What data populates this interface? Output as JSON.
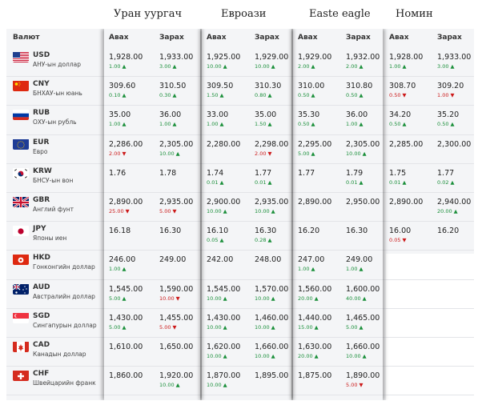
{
  "banks": [
    {
      "name": "Уран уургач"
    },
    {
      "name": "Евроази"
    },
    {
      "name": "Easte eagle"
    },
    {
      "name": "Номин"
    }
  ],
  "header": {
    "currency": "Валют",
    "buy": "Авах",
    "sell": "Зарах"
  },
  "rows": [
    {
      "code": "USD",
      "name": "АНУ-ын доллар",
      "flag": "us",
      "rates": [
        {
          "buy": "1,928.00",
          "buy_chg": "1.00",
          "buy_dir": "up",
          "sell": "1,933.00",
          "sell_chg": "3.00",
          "sell_dir": "up"
        },
        {
          "buy": "1,925.00",
          "buy_chg": "10.00",
          "buy_dir": "up",
          "sell": "1,929.00",
          "sell_chg": "10.00",
          "sell_dir": "up"
        },
        {
          "buy": "1,929.00",
          "buy_chg": "2.00",
          "buy_dir": "up",
          "sell": "1,932.00",
          "sell_chg": "2.00",
          "sell_dir": "up"
        },
        {
          "buy": "1,928.00",
          "buy_chg": "1.00",
          "buy_dir": "up",
          "sell": "1,933.00",
          "sell_chg": "3.00",
          "sell_dir": "up"
        }
      ]
    },
    {
      "code": "CNY",
      "name": "БНХАУ-ын юань",
      "flag": "cn",
      "rates": [
        {
          "buy": "309.60",
          "buy_chg": "0.10",
          "buy_dir": "up",
          "sell": "310.50",
          "sell_chg": "0.30",
          "sell_dir": "up"
        },
        {
          "buy": "309.50",
          "buy_chg": "1.50",
          "buy_dir": "up",
          "sell": "310.30",
          "sell_chg": "0.80",
          "sell_dir": "up"
        },
        {
          "buy": "310.00",
          "buy_chg": "0.50",
          "buy_dir": "up",
          "sell": "310.80",
          "sell_chg": "0.50",
          "sell_dir": "up"
        },
        {
          "buy": "308.70",
          "buy_chg": "0.50",
          "buy_dir": "down",
          "sell": "309.20",
          "sell_chg": "1.00",
          "sell_dir": "down"
        }
      ]
    },
    {
      "code": "RUB",
      "name": "ОХУ-ын рубль",
      "flag": "ru",
      "rates": [
        {
          "buy": "35.00",
          "buy_chg": "1.00",
          "buy_dir": "up",
          "sell": "36.00",
          "sell_chg": "1.00",
          "sell_dir": "up"
        },
        {
          "buy": "33.00",
          "buy_chg": "1.00",
          "buy_dir": "up",
          "sell": "35.00",
          "sell_chg": "1.50",
          "sell_dir": "up"
        },
        {
          "buy": "35.30",
          "buy_chg": "0.50",
          "buy_dir": "up",
          "sell": "36.00",
          "sell_chg": "1.00",
          "sell_dir": "up"
        },
        {
          "buy": "34.20",
          "buy_chg": "0.50",
          "buy_dir": "up",
          "sell": "35.20",
          "sell_chg": "0.50",
          "sell_dir": "up"
        }
      ]
    },
    {
      "code": "EUR",
      "name": "Евро",
      "flag": "eu",
      "rates": [
        {
          "buy": "2,286.00",
          "buy_chg": "2.00",
          "buy_dir": "down",
          "sell": "2,305.00",
          "sell_chg": "10.00",
          "sell_dir": "up"
        },
        {
          "buy": "2,280.00",
          "buy_chg": "",
          "buy_dir": "",
          "sell": "2,298.00",
          "sell_chg": "2.00",
          "sell_dir": "down"
        },
        {
          "buy": "2,295.00",
          "buy_chg": "5.00",
          "buy_dir": "up",
          "sell": "2,305.00",
          "sell_chg": "10.00",
          "sell_dir": "up"
        },
        {
          "buy": "2,285.00",
          "buy_chg": "",
          "buy_dir": "",
          "sell": "2,300.00",
          "sell_chg": "",
          "sell_dir": ""
        }
      ]
    },
    {
      "code": "KRW",
      "name": "БНСУ-ын вон",
      "flag": "kr",
      "rates": [
        {
          "buy": "1.76",
          "buy_chg": "",
          "buy_dir": "",
          "sell": "1.78",
          "sell_chg": "",
          "sell_dir": ""
        },
        {
          "buy": "1.74",
          "buy_chg": "0.01",
          "buy_dir": "up",
          "sell": "1.77",
          "sell_chg": "0.01",
          "sell_dir": "up"
        },
        {
          "buy": "1.77",
          "buy_chg": "",
          "buy_dir": "",
          "sell": "1.79",
          "sell_chg": "0.01",
          "sell_dir": "up"
        },
        {
          "buy": "1.75",
          "buy_chg": "0.01",
          "buy_dir": "up",
          "sell": "1.77",
          "sell_chg": "0.02",
          "sell_dir": "up"
        }
      ]
    },
    {
      "code": "GBR",
      "name": "Англий фунт",
      "flag": "gb",
      "rates": [
        {
          "buy": "2,890.00",
          "buy_chg": "25.00",
          "buy_dir": "down",
          "sell": "2,935.00",
          "sell_chg": "5.00",
          "sell_dir": "down"
        },
        {
          "buy": "2,900.00",
          "buy_chg": "10.00",
          "buy_dir": "up",
          "sell": "2,935.00",
          "sell_chg": "10.00",
          "sell_dir": "up"
        },
        {
          "buy": "2,890.00",
          "buy_chg": "",
          "buy_dir": "",
          "sell": "2,950.00",
          "sell_chg": "",
          "sell_dir": ""
        },
        {
          "buy": "2,890.00",
          "buy_chg": "",
          "buy_dir": "",
          "sell": "2,940.00",
          "sell_chg": "20.00",
          "sell_dir": "up"
        }
      ]
    },
    {
      "code": "JPY",
      "name": "Японы иен",
      "flag": "jp",
      "rates": [
        {
          "buy": "16.18",
          "buy_chg": "",
          "buy_dir": "",
          "sell": "16.30",
          "sell_chg": "",
          "sell_dir": ""
        },
        {
          "buy": "16.10",
          "buy_chg": "0.05",
          "buy_dir": "up",
          "sell": "16.30",
          "sell_chg": "0.28",
          "sell_dir": "up"
        },
        {
          "buy": "16.20",
          "buy_chg": "",
          "buy_dir": "",
          "sell": "16.30",
          "sell_chg": "",
          "sell_dir": ""
        },
        {
          "buy": "16.00",
          "buy_chg": "0.05",
          "buy_dir": "down",
          "sell": "16.20",
          "sell_chg": "",
          "sell_dir": ""
        }
      ]
    },
    {
      "code": "HKD",
      "name": "Гонконгийн доллар",
      "flag": "hk",
      "rates": [
        {
          "buy": "246.00",
          "buy_chg": "1.00",
          "buy_dir": "up",
          "sell": "249.00",
          "sell_chg": "",
          "sell_dir": ""
        },
        {
          "buy": "242.00",
          "buy_chg": "",
          "buy_dir": "",
          "sell": "248.00",
          "sell_chg": "",
          "sell_dir": ""
        },
        {
          "buy": "247.00",
          "buy_chg": "1.00",
          "buy_dir": "up",
          "sell": "249.00",
          "sell_chg": "1.00",
          "sell_dir": "up"
        },
        null
      ]
    },
    {
      "code": "AUD",
      "name": "Австралийн доллар",
      "flag": "au",
      "rates": [
        {
          "buy": "1,545.00",
          "buy_chg": "5.00",
          "buy_dir": "up",
          "sell": "1,590.00",
          "sell_chg": "10.00",
          "sell_dir": "down"
        },
        {
          "buy": "1,545.00",
          "buy_chg": "10.00",
          "buy_dir": "up",
          "sell": "1,570.00",
          "sell_chg": "10.00",
          "sell_dir": "up"
        },
        {
          "buy": "1,560.00",
          "buy_chg": "20.00",
          "buy_dir": "up",
          "sell": "1,600.00",
          "sell_chg": "40.00",
          "sell_dir": "up"
        },
        null
      ]
    },
    {
      "code": "SGD",
      "name": "Сингапурын доллар",
      "flag": "sg",
      "rates": [
        {
          "buy": "1,430.00",
          "buy_chg": "5.00",
          "buy_dir": "up",
          "sell": "1,455.00",
          "sell_chg": "5.00",
          "sell_dir": "down"
        },
        {
          "buy": "1,430.00",
          "buy_chg": "10.00",
          "buy_dir": "up",
          "sell": "1,460.00",
          "sell_chg": "10.00",
          "sell_dir": "up"
        },
        {
          "buy": "1,440.00",
          "buy_chg": "15.00",
          "buy_dir": "up",
          "sell": "1,465.00",
          "sell_chg": "5.00",
          "sell_dir": "up"
        },
        null
      ]
    },
    {
      "code": "CAD",
      "name": "Канадын доллар",
      "flag": "ca",
      "rates": [
        {
          "buy": "1,610.00",
          "buy_chg": "",
          "buy_dir": "",
          "sell": "1,650.00",
          "sell_chg": "",
          "sell_dir": ""
        },
        {
          "buy": "1,620.00",
          "buy_chg": "10.00",
          "buy_dir": "up",
          "sell": "1,660.00",
          "sell_chg": "10.00",
          "sell_dir": "up"
        },
        {
          "buy": "1,630.00",
          "buy_chg": "20.00",
          "buy_dir": "up",
          "sell": "1,660.00",
          "sell_chg": "10.00",
          "sell_dir": "up"
        },
        null
      ]
    },
    {
      "code": "CHF",
      "name": "Швейцарийн франк",
      "flag": "ch",
      "rates": [
        {
          "buy": "1,860.00",
          "buy_chg": "",
          "buy_dir": "",
          "sell": "1,920.00",
          "sell_chg": "10.00",
          "sell_dir": "up"
        },
        {
          "buy": "1,870.00",
          "buy_chg": "10.00",
          "buy_dir": "up",
          "sell": "1,895.00",
          "sell_chg": "",
          "sell_dir": ""
        },
        {
          "buy": "1,875.00",
          "buy_chg": "",
          "buy_dir": "",
          "sell": "1,890.00",
          "sell_chg": "5.00",
          "sell_dir": "down"
        },
        null
      ]
    }
  ],
  "colors": {
    "up": "#1a8f3a",
    "down": "#cc1a1a",
    "row_bg": "#f4f5f7"
  }
}
